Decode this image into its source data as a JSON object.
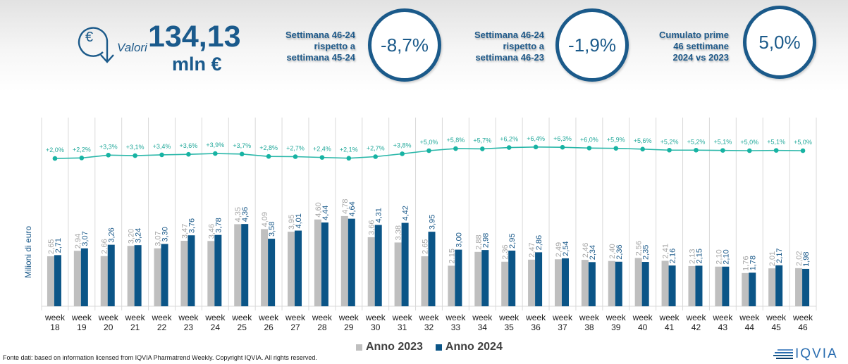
{
  "header": {
    "icon": "euro-down-arrow-icon",
    "valori_label": "Valori",
    "total_value": "134,13",
    "total_unit": "mln €",
    "kpis": [
      {
        "caption_lines": [
          "Settimana 46-24",
          "rispetto a",
          "settimana 45-24"
        ],
        "value": "-8,7%"
      },
      {
        "caption_lines": [
          "Settimana 46-24",
          "rispetto a",
          "settimana 46-23"
        ],
        "value": "-1,9%"
      },
      {
        "caption_lines": [
          "Cumulato prime",
          "46 settimane",
          "2024 vs 2023"
        ],
        "value": "5,0%"
      }
    ]
  },
  "colors": {
    "anno_2023": "#bfbfbf",
    "anno_2024": "#0b5587",
    "growth_line": "#2ab7a9",
    "label_2023": "#a6a6a6",
    "label_2024": "#1b5a8a",
    "primary": "#1b5a8a"
  },
  "chart_data": {
    "type": "bar",
    "title": "",
    "xlabel": "",
    "ylabel": "Milioni di euro",
    "ylim": [
      0,
      10
    ],
    "grid": "vertical category separators",
    "legend_position": "bottom",
    "categories": [
      "week 18",
      "week 19",
      "week 20",
      "week 21",
      "week 22",
      "week 23",
      "week 24",
      "week 25",
      "week 26",
      "week 27",
      "week 28",
      "week 29",
      "week 30",
      "week 31",
      "week 32",
      "week 33",
      "week 34",
      "week 35",
      "week 36",
      "week 37",
      "week 38",
      "week 39",
      "week 40",
      "week 41",
      "week 42",
      "week 43",
      "week 44",
      "week 45",
      "week 46"
    ],
    "series": [
      {
        "name": "Anno 2023",
        "type": "bar",
        "values": [
          2.65,
          2.94,
          2.66,
          3.2,
          3.07,
          3.47,
          3.46,
          4.35,
          4.09,
          3.95,
          4.6,
          4.78,
          3.66,
          3.38,
          2.65,
          2.15,
          2.88,
          2.36,
          2.47,
          2.49,
          2.46,
          2.4,
          2.56,
          2.41,
          2.13,
          2.1,
          1.76,
          2.01,
          2.02
        ],
        "labels": [
          "2,65",
          "2,94",
          "2,66",
          "3,20",
          "3,07",
          "3,47",
          "3,46",
          "4,35",
          "4,09",
          "3,95",
          "4,60",
          "4,78",
          "3,66",
          "3,38",
          "2,65",
          "2,15",
          "2,88",
          "2,36",
          "2,47",
          "2,49",
          "2,46",
          "2,40",
          "2,56",
          "2,41",
          "2,13",
          "2,10",
          "1,76",
          "2,01",
          "2,02"
        ]
      },
      {
        "name": "Anno 2024",
        "type": "bar",
        "values": [
          2.71,
          3.07,
          3.26,
          3.24,
          3.3,
          3.76,
          3.78,
          4.36,
          3.58,
          4.01,
          4.44,
          4.64,
          4.31,
          4.42,
          3.95,
          3.0,
          2.98,
          2.95,
          2.86,
          2.54,
          2.34,
          2.36,
          2.35,
          2.16,
          2.15,
          2.1,
          1.78,
          2.17,
          1.98
        ],
        "labels": [
          "2,71",
          "3,07",
          "3,26",
          "3,24",
          "3,30",
          "3,76",
          "3,78",
          "4,36",
          "3,58",
          "4,01",
          "4,44",
          "4,64",
          "4,31",
          "4,42",
          "3,95",
          "3,00",
          "2,98",
          "2,95",
          "2,86",
          "2,54",
          "2,34",
          "2,36",
          "2,35",
          "2,16",
          "2,15",
          "2,10",
          "1,78",
          "2,17",
          "1,98"
        ]
      },
      {
        "name": "Crescita cumulata",
        "type": "line",
        "unit": "%",
        "values": [
          2.0,
          2.2,
          3.3,
          3.1,
          3.4,
          3.6,
          3.9,
          3.7,
          2.8,
          2.7,
          2.4,
          2.1,
          2.7,
          3.8,
          5.0,
          5.8,
          5.7,
          6.2,
          6.4,
          6.3,
          6.0,
          5.9,
          5.6,
          5.2,
          5.2,
          5.1,
          5.0,
          5.1,
          5.0
        ],
        "labels": [
          "+2,0%",
          "+2,2%",
          "+3,3%",
          "+3,1%",
          "+3,4%",
          "+3,6%",
          "+3,9%",
          "+3,7%",
          "+2,8%",
          "+2,7%",
          "+2,4%",
          "+2,1%",
          "+2,7%",
          "+3,8%",
          "+5,0%",
          "+5,8%",
          "+5,7%",
          "+6,2%",
          "+6,4%",
          "+6,3%",
          "+6,0%",
          "+5,9%",
          "+5,6%",
          "+5,2%",
          "+5,2%",
          "+5,1%",
          "+5,0%",
          "+5,1%",
          "+5,0%"
        ]
      }
    ],
    "x_tick_lines": [
      [
        "week",
        "18"
      ],
      [
        "week",
        "19"
      ],
      [
        "week",
        "20"
      ],
      [
        "week",
        "21"
      ],
      [
        "week",
        "22"
      ],
      [
        "week",
        "23"
      ],
      [
        "week",
        "24"
      ],
      [
        "week",
        "25"
      ],
      [
        "week",
        "26"
      ],
      [
        "week",
        "27"
      ],
      [
        "week",
        "28"
      ],
      [
        "week",
        "29"
      ],
      [
        "week",
        "30"
      ],
      [
        "week",
        "31"
      ],
      [
        "week",
        "32"
      ],
      [
        "week",
        "33"
      ],
      [
        "week",
        "34"
      ],
      [
        "week",
        "35"
      ],
      [
        "week",
        "36"
      ],
      [
        "week",
        "37"
      ],
      [
        "week",
        "38"
      ],
      [
        "week",
        "39"
      ],
      [
        "week",
        "40"
      ],
      [
        "week",
        "41"
      ],
      [
        "week",
        "42"
      ],
      [
        "week",
        "43"
      ],
      [
        "week",
        "44"
      ],
      [
        "week",
        "45"
      ],
      [
        "week",
        "46"
      ]
    ]
  },
  "legend": [
    {
      "label": "Anno 2023",
      "color_key": "anno_2023"
    },
    {
      "label": "Anno 2024",
      "color_key": "anno_2024"
    }
  ],
  "footer": {
    "source_note": "Fonte dati: based on information licensed from IQVIA Pharmatrend Weekly. Copyright IQVIA. All rights reserved.",
    "logo_text": "IQVIA"
  }
}
